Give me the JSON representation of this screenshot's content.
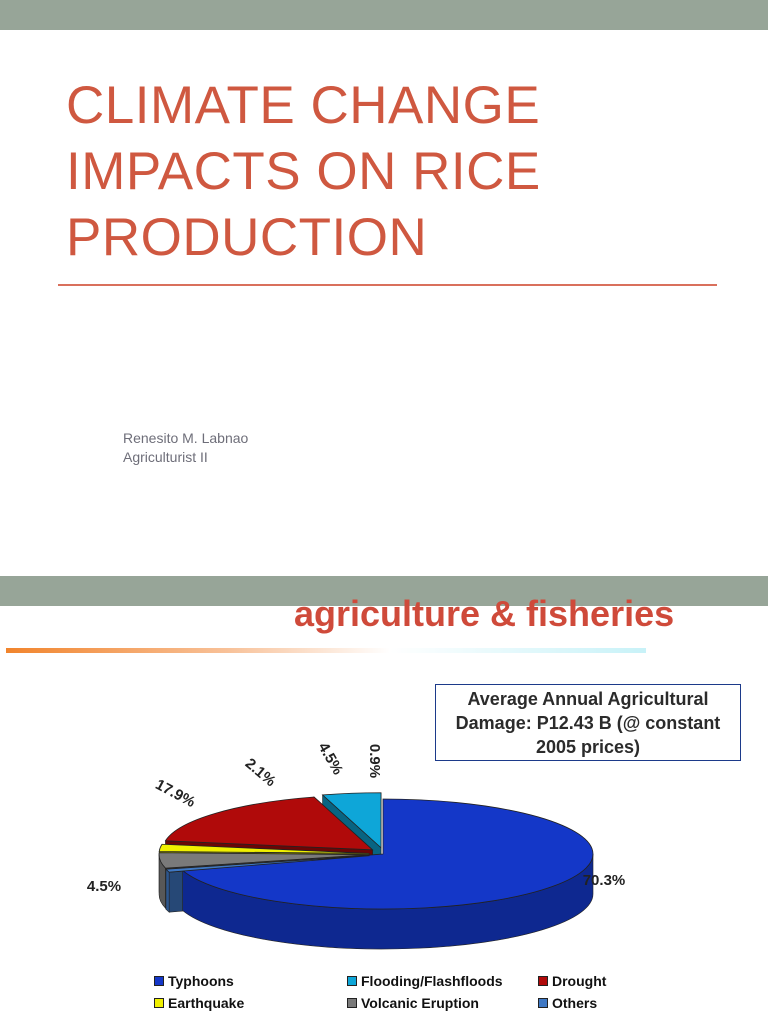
{
  "slide1": {
    "title_lines": [
      "CLIMATE CHANGE",
      "IMPACTS ON RICE",
      "PRODUCTION"
    ],
    "author_name": "Renesito M. Labnao",
    "author_role": "Agriculturist II"
  },
  "slide2": {
    "heading": "agriculture & fisheries",
    "info_box": "Average Annual Agricultural Damage: P12.43 B (@ constant 2005 prices)"
  },
  "colors": {
    "title": "#cf5840",
    "heading": "#cf4a3a",
    "bar": "#97a598",
    "typhoons": "#1437c8",
    "flooding": "#0ea6d8",
    "drought": "#b00a0a",
    "earthquake": "#f0f000",
    "volcanic": "#7a7a7a",
    "others": "#3f78c4"
  },
  "chart_data": {
    "type": "pie",
    "title": "Average Annual Agricultural Damage: P12.43 B (@ constant 2005 prices)",
    "legend_position": "bottom",
    "slices": [
      {
        "name": "Typhoons",
        "value": 70.3,
        "label": "70.3%",
        "color": "#1437c8"
      },
      {
        "name": "Others",
        "value": 0.9,
        "label": "0.9%",
        "color": "#3f78c4"
      },
      {
        "name": "Volcanic Eruption",
        "value": 4.5,
        "label": "4.5%",
        "color": "#7a7a7a"
      },
      {
        "name": "Earthquake",
        "value": 2.1,
        "label": "2.1%",
        "color": "#f0f000"
      },
      {
        "name": "Drought",
        "value": 17.9,
        "label": "17.9%",
        "color": "#b00a0a"
      },
      {
        "name": "Flooding/Flashfloods",
        "value": 4.5,
        "label": "4.5%",
        "color": "#0ea6d8"
      }
    ],
    "legend": [
      {
        "name": "Typhoons",
        "color": "#1437c8"
      },
      {
        "name": "Flooding/Flashfloods",
        "color": "#0ea6d8"
      },
      {
        "name": "Drought",
        "color": "#b00a0a"
      },
      {
        "name": "Earthquake",
        "color": "#f0f000"
      },
      {
        "name": "Volcanic Eruption",
        "color": "#7a7a7a"
      },
      {
        "name": "Others",
        "color": "#3f78c4"
      }
    ]
  }
}
